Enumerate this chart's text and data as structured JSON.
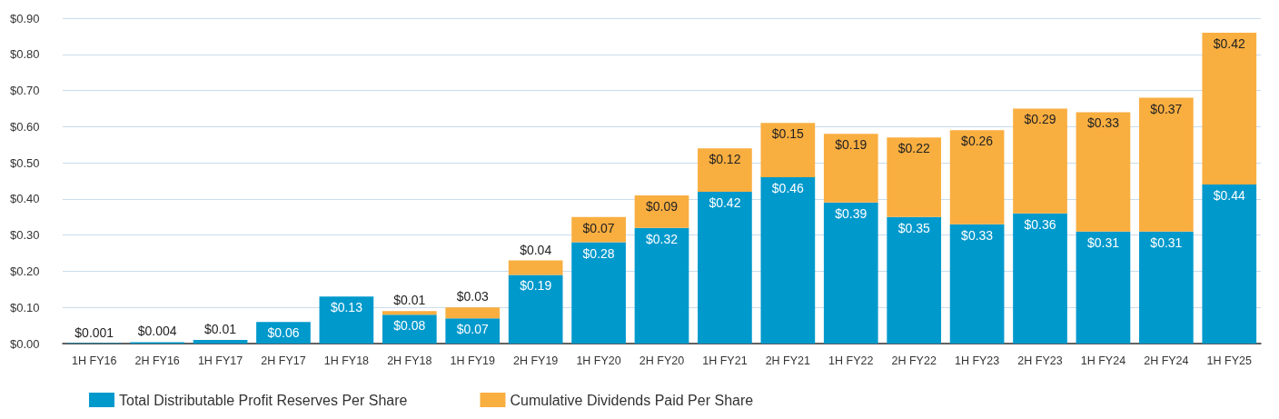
{
  "chart_data": {
    "type": "bar",
    "stacked": true,
    "categories": [
      "1H FY16",
      "2H FY16",
      "1H FY17",
      "2H FY17",
      "1H FY18",
      "2H FY18",
      "1H FY19",
      "2H FY19",
      "1H FY20",
      "2H FY20",
      "1H FY21",
      "2H FY21",
      "1H FY22",
      "2H FY22",
      "1H FY23",
      "2H FY23",
      "1H FY24",
      "2H FY24",
      "1H FY25"
    ],
    "series": [
      {
        "name": "Total Distributable Profit Reserves Per Share",
        "color": "#0099cc",
        "values": [
          0.001,
          0.004,
          0.01,
          0.06,
          0.13,
          0.08,
          0.07,
          0.19,
          0.28,
          0.32,
          0.42,
          0.46,
          0.39,
          0.35,
          0.33,
          0.36,
          0.31,
          0.31,
          0.44
        ],
        "value_labels": [
          "$0.001",
          "$0.004",
          "$0.01",
          "$0.06",
          "$0.13",
          "$0.08",
          "$0.07",
          "$0.19",
          "$0.28",
          "$0.32",
          "$0.42",
          "$0.46",
          "$0.39",
          "$0.35",
          "$0.33",
          "$0.36",
          "$0.31",
          "$0.31",
          "$0.44"
        ]
      },
      {
        "name": "Cumulative Dividends Paid Per Share",
        "color": "#f9ae40",
        "values": [
          null,
          null,
          null,
          null,
          null,
          0.01,
          0.03,
          0.04,
          0.07,
          0.09,
          0.12,
          0.15,
          0.19,
          0.22,
          0.26,
          0.29,
          0.33,
          0.37,
          0.42
        ],
        "value_labels": [
          null,
          null,
          null,
          null,
          null,
          "$0.01",
          "$0.03",
          "$0.04",
          "$0.07",
          "$0.09",
          "$0.12",
          "$0.15",
          "$0.19",
          "$0.22",
          "$0.26",
          "$0.29",
          "$0.33",
          "$0.37",
          "$0.42"
        ]
      }
    ],
    "ylim": [
      0,
      0.9
    ],
    "yticks": [
      {
        "value": 0,
        "label": "$0.00"
      },
      {
        "value": 0.1,
        "label": "$0.10"
      },
      {
        "value": 0.2,
        "label": "$0.20"
      },
      {
        "value": 0.3,
        "label": "$0.30"
      },
      {
        "value": 0.4,
        "label": "$0.40"
      },
      {
        "value": 0.5,
        "label": "$0.50"
      },
      {
        "value": 0.6,
        "label": "$0.60"
      },
      {
        "value": 0.7,
        "label": "$0.70"
      },
      {
        "value": 0.8,
        "label": "$0.80"
      },
      {
        "value": 0.9,
        "label": "$0.90"
      }
    ],
    "grid": "y",
    "legend": "bottom left"
  }
}
